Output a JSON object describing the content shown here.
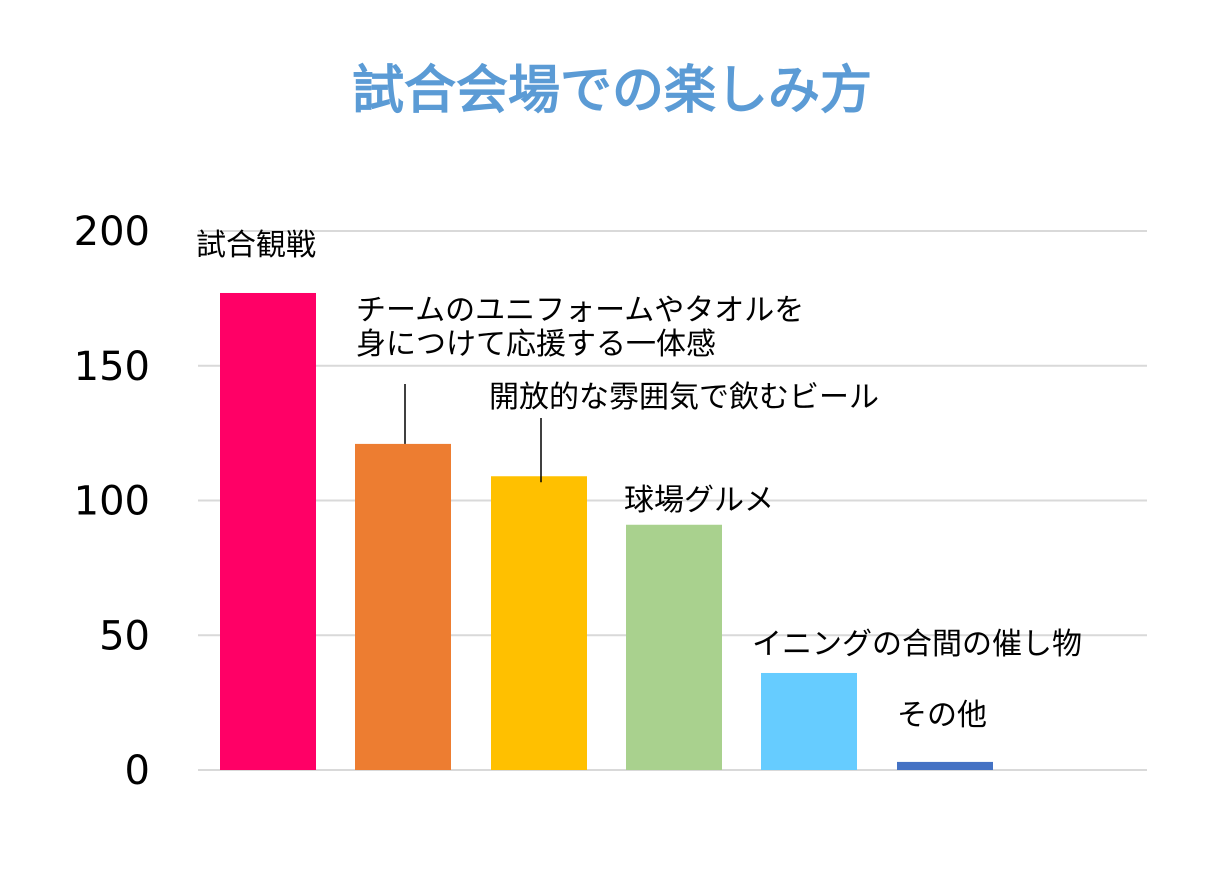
{
  "chart_data": {
    "type": "bar",
    "title": "試合会場での楽しみ方",
    "title_color": "#5B9BD5",
    "xlabel": "",
    "ylabel": "",
    "ylim": [
      0,
      200
    ],
    "yticks": [
      "0",
      "50",
      "100",
      "150",
      "200"
    ],
    "grid": true,
    "legend": "none",
    "categories": [
      "試合観戦",
      "チームのユニフォームやタオルを身につけて応援する一体感",
      "開放的な雰囲気で飲むビール",
      "球場グルメ",
      "イニングの合間の催し物",
      "その他"
    ],
    "label_lines": [
      [
        "試合観戦"
      ],
      [
        "チームのユニフォームやタオルを",
        "身につけて応援する一体感"
      ],
      [
        "開放的な雰囲気で飲むビール"
      ],
      [
        "球場グルメ"
      ],
      [
        "イニングの合間の催し物"
      ],
      [
        "その他"
      ]
    ],
    "values": [
      177,
      121,
      109,
      91,
      36,
      3
    ],
    "colors": [
      "#FF0066",
      "#ED7D31",
      "#FFC000",
      "#A9D18E",
      "#66CCFF",
      "#4472C4"
    ],
    "gridline_color": "#D9D9D9"
  }
}
